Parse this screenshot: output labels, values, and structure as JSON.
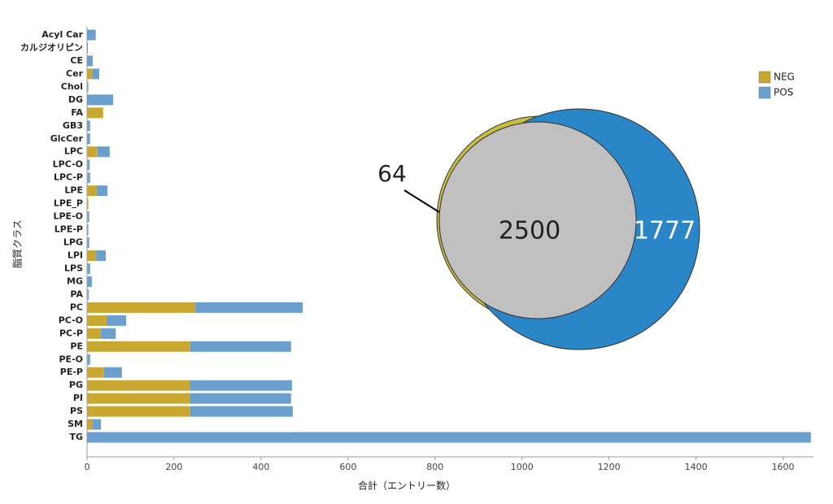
{
  "chart_data": [
    {
      "type": "bar",
      "orientation": "horizontal",
      "stacked": true,
      "xlabel": "合計（エントリー数）",
      "ylabel": "脂質クラス",
      "categories": [
        "Acyl Car",
        "カルジオリピン",
        "CE",
        "Cer",
        "Chol",
        "DG",
        "FA",
        "GB3",
        "GlcCer",
        "LPC",
        "LPC-O",
        "LPC-P",
        "LPE",
        "LPE_P",
        "LPE-O",
        "LPE-P",
        "LPG",
        "LPI",
        "LPS",
        "MG",
        "PA",
        "PC",
        "PC-O",
        "PC-P",
        "PE",
        "PE-O",
        "PE-P",
        "PG",
        "PI",
        "PS",
        "SM",
        "TG"
      ],
      "series": [
        {
          "name": "NEG",
          "color": "#c9a832",
          "values": [
            0,
            0,
            0,
            13,
            1,
            0,
            37,
            0,
            0,
            24,
            2,
            2,
            22,
            3,
            2,
            1,
            1,
            21,
            2,
            1,
            2,
            249,
            45,
            32,
            237,
            2,
            39,
            236,
            236,
            237,
            13,
            0
          ]
        },
        {
          "name": "POS",
          "color": "#6a9fce",
          "values": [
            20,
            2,
            13,
            15,
            2,
            60,
            0,
            7,
            7,
            28,
            4,
            5,
            25,
            0,
            3,
            2,
            4,
            22,
            5,
            10,
            2,
            247,
            45,
            34,
            232,
            5,
            41,
            235,
            233,
            236,
            19,
            1664
          ]
        }
      ],
      "xlim": [
        0,
        1670
      ],
      "xticks": [
        0,
        200,
        400,
        600,
        800,
        1000,
        1200,
        1400,
        1600
      ],
      "legend": "upper right"
    },
    {
      "type": "venn",
      "regions": [
        {
          "value": 64,
          "color": "#c8bd3c"
        },
        {
          "value": 2500,
          "color": "#c0c0c0"
        },
        {
          "value": 1777,
          "color": "#2b86c8"
        }
      ]
    }
  ]
}
